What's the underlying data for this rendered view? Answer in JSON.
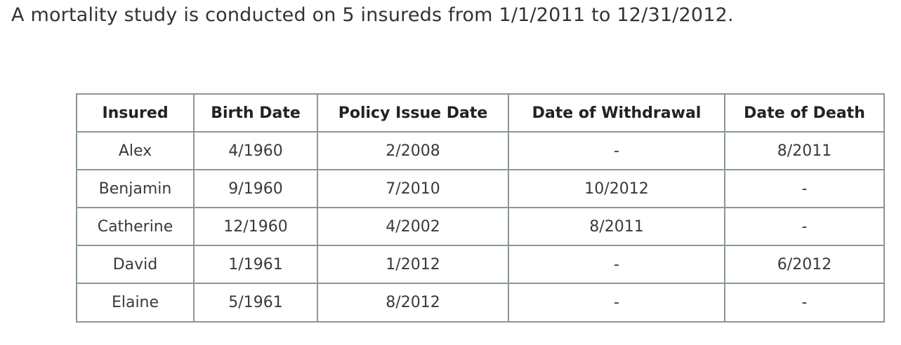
{
  "intro": "A mortality study is conducted on 5 insureds from 1/1/2011 to 12/31/2012.",
  "table": {
    "headers": [
      "Insured",
      "Birth Date",
      "Policy Issue Date",
      "Date of Withdrawal",
      "Date of Death"
    ],
    "rows": [
      [
        "Alex",
        "4/1960",
        "2/2008",
        "-",
        "8/2011"
      ],
      [
        "Benjamin",
        "9/1960",
        "7/2010",
        "10/2012",
        "-"
      ],
      [
        "Catherine",
        "12/1960",
        "4/2002",
        "8/2011",
        "-"
      ],
      [
        "David",
        "1/1961",
        "1/2012",
        "-",
        "6/2012"
      ],
      [
        "Elaine",
        "5/1961",
        "8/2012",
        "-",
        "-"
      ]
    ]
  }
}
